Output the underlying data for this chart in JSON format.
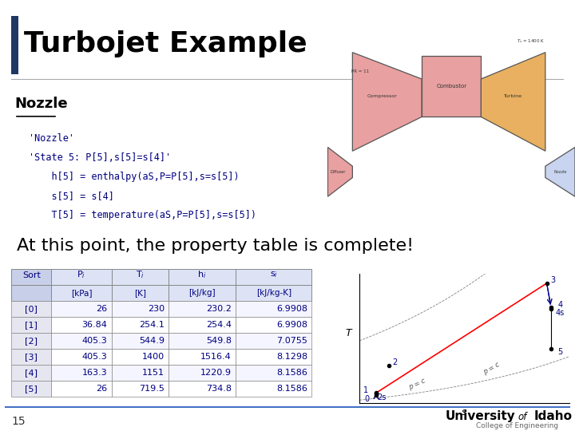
{
  "title": "Turbojet Example",
  "subtitle": "Nozzle",
  "bg_color": "#ffffff",
  "title_color": "#000000",
  "subtitle_color": "#000000",
  "accent_color": "#1F3864",
  "code_color": "#000080",
  "code_lines": [
    "'Nozzle'",
    "'State 5: P[5],s[5]=s[4]'",
    "    h[5] = enthalpy(aS,P=P[5],s=s[5])",
    "    s[5] = s[4]",
    "    T[5] = temperature(aS,P=P[5],s=s[5])"
  ],
  "statement": "At this point, the property table is complete!",
  "table_rows": [
    [
      "[0]",
      "26",
      "230",
      "230.2",
      "6.9908"
    ],
    [
      "[1]",
      "36.84",
      "254.1",
      "254.4",
      "6.9908"
    ],
    [
      "[2]",
      "405.3",
      "544.9",
      "549.8",
      "7.0755"
    ],
    [
      "[3]",
      "405.3",
      "1400",
      "1516.4",
      "8.1298"
    ],
    [
      "[4]",
      "163.3",
      "1151",
      "1220.9",
      "8.1586"
    ],
    [
      "[5]",
      "26",
      "719.5",
      "734.8",
      "8.1586"
    ]
  ],
  "table_text_color": "#000080",
  "table_border_color": "#888888",
  "page_number": "15",
  "footer_line_color": "#4472c4"
}
